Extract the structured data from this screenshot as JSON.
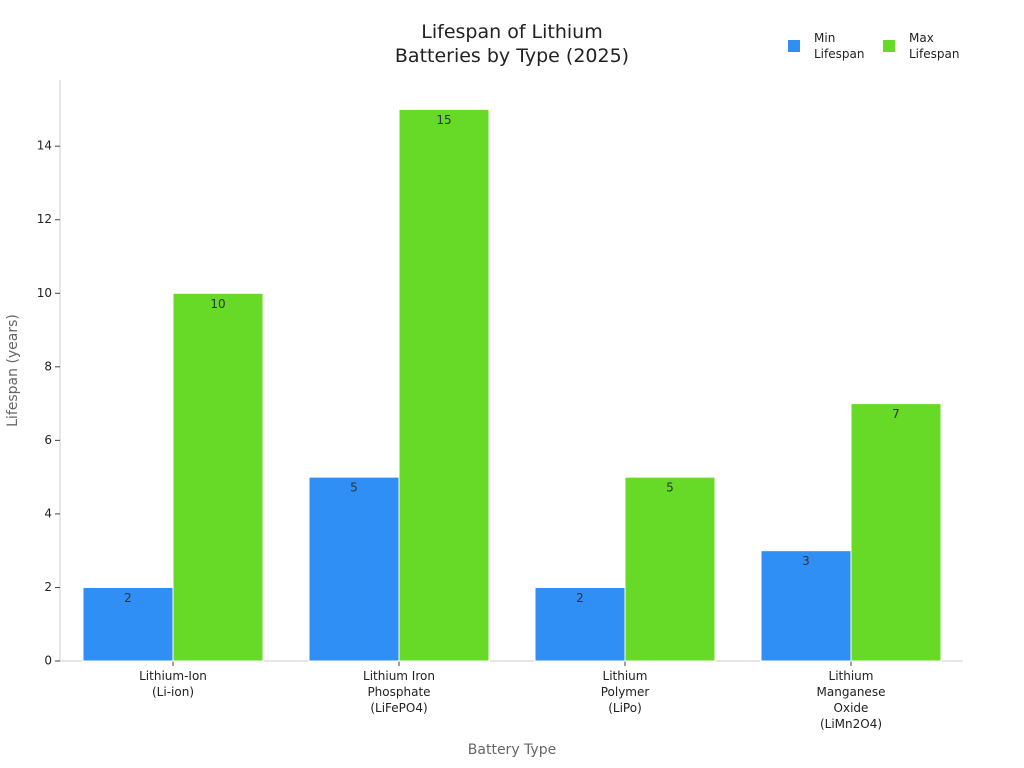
{
  "chart_data": {
    "type": "bar",
    "title": "Lifespan of Lithium\nBatteries by Type (2025)",
    "x_label": "Battery Type",
    "y_label": "Lifespan (years)",
    "categories": [
      "Lithium-Ion\n(Li-ion)",
      "Lithium Iron\nPhosphate\n(LiFePO4)",
      "Lithium\nPolymer\n(LiPo)",
      "Lithium\nManganese\nOxide\n(LiMn2O4)"
    ],
    "series": [
      {
        "name": "Min\nLifespan",
        "color": "#2f8ff5",
        "values": [
          2,
          5,
          2,
          3
        ]
      },
      {
        "name": "Max\nLifespan",
        "color": "#66da26",
        "values": [
          10,
          15,
          5,
          7
        ]
      }
    ],
    "ylim": [
      0,
      15.8
    ],
    "yticks": [
      0,
      2,
      4,
      6,
      8,
      10,
      12,
      14
    ],
    "legend": "top-right"
  }
}
